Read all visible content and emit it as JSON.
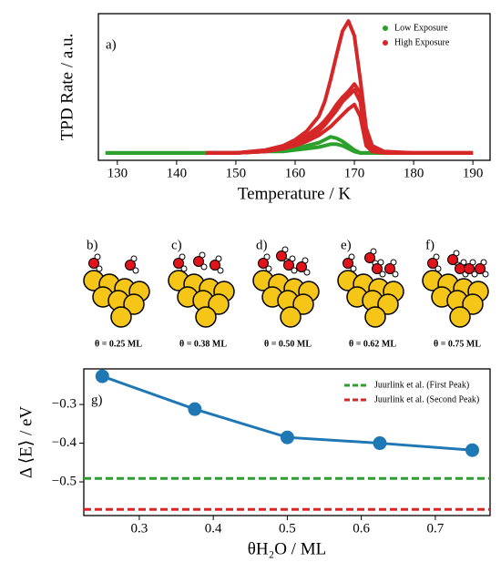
{
  "chart_data": [
    {
      "type": "line",
      "annotation": "a)",
      "xlabel": "Temperature / K",
      "ylabel": "TPD Rate / a.u.",
      "x": [
        128,
        135,
        140,
        145,
        150,
        155,
        158,
        160,
        162,
        164,
        165,
        166,
        167,
        168,
        169,
        170,
        171,
        172,
        173,
        175,
        180,
        190
      ],
      "xlim": [
        126.8,
        192.9
      ],
      "ylim": [
        0,
        100
      ],
      "xticks": [
        130,
        140,
        150,
        160,
        170,
        180,
        190
      ],
      "legend": "upper right",
      "series": [
        {
          "name": "Low Exposure",
          "color": "#2ca02c",
          "curves": [
            [
              5,
              5,
              5,
              5,
              5,
              6,
              6,
              7,
              8,
              9,
              10,
              11,
              11,
              10,
              8,
              6,
              5,
              5,
              5,
              5,
              null,
              null
            ],
            [
              5,
              5,
              5,
              5,
              5,
              6,
              7,
              8,
              10,
              12,
              14,
              16,
              15,
              13,
              10,
              7,
              5,
              5,
              5,
              5,
              null,
              null
            ]
          ]
        },
        {
          "name": "High Exposure",
          "color": "#d62728",
          "curves": [
            [
              null,
              null,
              null,
              5,
              5,
              6,
              8,
              10,
              13,
              17,
              20,
              23,
              27,
              31,
              35,
              38,
              30,
              10,
              6,
              5,
              5,
              5
            ],
            [
              null,
              null,
              null,
              5,
              5,
              6,
              8,
              11,
              15,
              20,
              24,
              29,
              34,
              40,
              44,
              48,
              40,
              12,
              7,
              5,
              5,
              5
            ],
            [
              null,
              null,
              null,
              5,
              5,
              6,
              9,
              12,
              17,
              23,
              27,
              32,
              38,
              43,
              47,
              52,
              46,
              15,
              8,
              5,
              5,
              5
            ],
            [
              null,
              null,
              null,
              5,
              5,
              7,
              10,
              14,
              20,
              30,
              40,
              55,
              72,
              88,
              95,
              85,
              55,
              22,
              10,
              6,
              5,
              5
            ]
          ]
        }
      ]
    },
    {
      "type": "line",
      "annotation": "g)",
      "xlabel": "θH₂O / ML",
      "ylabel": "Δ ⟨E⟩ / eV",
      "x": [
        0.25,
        0.375,
        0.5,
        0.625,
        0.75
      ],
      "xlim": [
        0.225,
        0.774
      ],
      "ylim": [
        -0.587,
        -0.208
      ],
      "xticks": [
        0.3,
        0.4,
        0.5,
        0.6,
        0.7
      ],
      "yticks": [
        {
          "value": -0.3,
          "label": "−0.3"
        },
        {
          "value": -0.4,
          "label": "−0.4"
        },
        {
          "value": -0.5,
          "label": "−0.5"
        }
      ],
      "legend": "upper right",
      "series": [
        {
          "color": "#1f77b4",
          "values": [
            -0.227,
            -0.312,
            -0.385,
            -0.4,
            -0.418
          ]
        }
      ],
      "hlines": [
        {
          "name": "Juurlink et al. (First Peak)",
          "color": "#2ca02c",
          "value": -0.491
        },
        {
          "name": "Juurlink et al. (Second Peak)",
          "color": "#d62728",
          "value": -0.571
        }
      ]
    }
  ],
  "structures": [
    {
      "label": "b)",
      "coverage": "θ = 0.25 ML"
    },
    {
      "label": "c)",
      "coverage": "θ = 0.38 ML"
    },
    {
      "label": "d)",
      "coverage": "θ = 0.50 ML"
    },
    {
      "label": "e)",
      "coverage": "θ = 0.62 ML"
    },
    {
      "label": "f)",
      "coverage": "θ = 0.75 ML"
    }
  ]
}
